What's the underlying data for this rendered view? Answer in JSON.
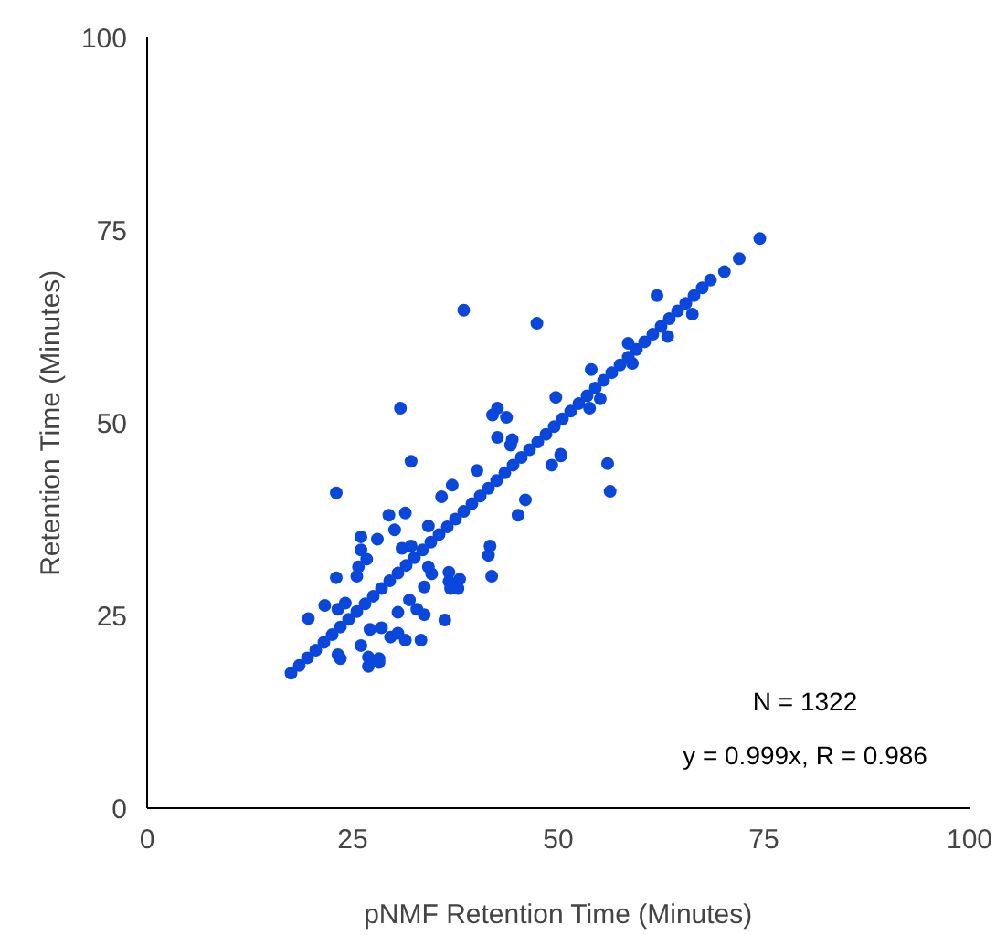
{
  "chart_data": {
    "type": "scatter",
    "xlabel": "pNMF Retention Time (Minutes)",
    "ylabel": "Retention Time (Minutes)",
    "xlim": [
      0,
      100
    ],
    "ylim": [
      0,
      100
    ],
    "xticks": [
      0,
      25,
      50,
      75,
      100
    ],
    "yticks": [
      0,
      25,
      50,
      75,
      100
    ],
    "grid": false,
    "marker": "circle",
    "annotations": [
      "N = 1322",
      "y = 0.999x, R = 0.986"
    ],
    "series": [
      {
        "color": "#0a47dc",
        "x": [
          17.5,
          18.5,
          19.5,
          20.5,
          21.5,
          22.5,
          23.5,
          24.5,
          25.5,
          26.5,
          27.5,
          28.5,
          29.5,
          30.5,
          31.5,
          32.5,
          33.5,
          34.5,
          35.5,
          36.5,
          37.5,
          38.5,
          39.5,
          40.5,
          41.5,
          42.5,
          43.5,
          44.5,
          45.5,
          46.5,
          47.5,
          48.5,
          49.5,
          50.5,
          51.5,
          52.5,
          53.5,
          54.5,
          55.5,
          56.5,
          57.5,
          58.5,
          59.5,
          60.5,
          61.5,
          62.5,
          63.5,
          64.5,
          65.5,
          66.5,
          67.5,
          68.5,
          70.2,
          72.0,
          74.5
        ],
        "values": [
          17.5,
          18.5,
          19.5,
          20.5,
          21.5,
          22.5,
          23.5,
          24.5,
          25.5,
          26.5,
          27.5,
          28.5,
          29.5,
          30.5,
          31.5,
          32.5,
          33.5,
          34.5,
          35.5,
          36.5,
          37.5,
          38.5,
          39.5,
          40.5,
          41.5,
          42.5,
          43.5,
          44.5,
          45.5,
          46.5,
          47.5,
          48.5,
          49.5,
          50.5,
          51.5,
          52.5,
          53.5,
          54.5,
          55.5,
          56.5,
          57.5,
          58.5,
          59.5,
          60.5,
          61.5,
          62.5,
          63.5,
          64.5,
          65.5,
          66.5,
          67.5,
          68.5,
          69.6,
          71.3,
          73.9
        ]
      },
      {
        "color": "#0a47dc",
        "x": [
          38.5,
          47.4,
          30.8,
          23.0,
          32.1,
          42.6,
          42.0,
          43.7,
          42.6,
          44.4,
          44.2,
          49.7,
          54.0,
          55.1,
          49.2,
          50.3,
          56.0,
          56.3,
          40.1,
          37.1,
          35.8,
          46.0,
          45.1,
          29.4,
          31.4,
          30.1,
          34.2,
          26.0,
          28.0,
          26.0,
          31.0,
          32.1,
          26.7,
          25.7,
          25.5,
          23.0,
          21.6,
          19.6,
          23.2,
          24.1,
          41.7,
          41.5,
          41.9,
          34.6,
          36.7,
          36.7,
          38.0,
          36.9,
          37.8,
          34.2,
          33.7,
          31.9,
          32.8,
          33.7,
          30.5,
          36.2,
          27.1,
          28.5,
          29.6,
          30.5,
          31.4,
          33.3,
          26.0,
          26.9,
          28.2,
          26.9,
          28.2,
          23.2,
          23.5,
          62.0,
          58.5,
          59.0,
          63.3,
          66.3,
          53.8,
          50.3
        ],
        "values": [
          64.6,
          62.9,
          51.9,
          40.9,
          45.0,
          51.9,
          51.0,
          50.7,
          48.1,
          47.8,
          47.1,
          53.3,
          56.9,
          53.1,
          44.5,
          45.7,
          44.7,
          41.1,
          43.8,
          41.9,
          40.4,
          40.0,
          38.0,
          38.0,
          38.3,
          36.1,
          36.6,
          35.2,
          34.9,
          33.5,
          33.7,
          34.0,
          32.3,
          31.3,
          30.1,
          29.9,
          26.3,
          24.6,
          25.8,
          26.6,
          34.0,
          32.8,
          30.1,
          30.4,
          30.6,
          29.4,
          29.7,
          28.5,
          28.5,
          31.3,
          28.7,
          27.0,
          25.8,
          25.1,
          25.4,
          24.4,
          23.2,
          23.4,
          22.2,
          22.7,
          21.8,
          21.8,
          21.1,
          19.6,
          19.4,
          18.4,
          18.9,
          19.9,
          19.4,
          66.5,
          60.3,
          57.7,
          61.2,
          64.1,
          51.9,
          45.9
        ]
      }
    ]
  }
}
